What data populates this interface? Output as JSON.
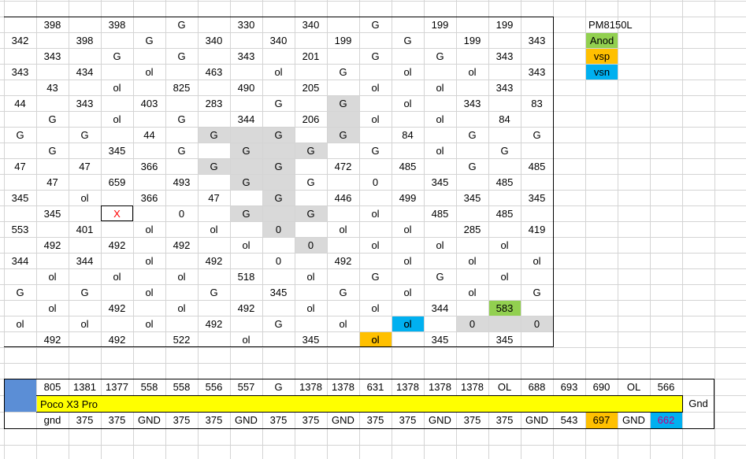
{
  "colors": {
    "gray": "#d9d9d9",
    "green": "#92d050",
    "orange": "#ffc000",
    "blue": "#00b0f0",
    "yellow": "#ffff00",
    "steel_blue": "#5b8ed6",
    "red_text": "#ff0000",
    "magenta_text": "#c00080",
    "grid_line": "#d4d4d4"
  },
  "legend": {
    "title": "PM8150L",
    "items": [
      {
        "label": "Anod",
        "color": "green"
      },
      {
        "label": "vsp",
        "color": "orange"
      },
      {
        "label": "vsn",
        "color": "blue"
      }
    ]
  },
  "top_table": [
    [
      "",
      "398",
      "",
      "398",
      "",
      "G",
      "",
      "330",
      "",
      "340",
      "",
      "G",
      "",
      "199",
      "",
      "199",
      ""
    ],
    [
      "342",
      "",
      "398",
      "",
      "G",
      "",
      "340",
      "",
      "340",
      "",
      "199",
      "",
      "G",
      "",
      "199",
      "",
      "343"
    ],
    [
      "",
      "343",
      "",
      "G",
      "",
      "G",
      "",
      "343",
      "",
      "201",
      "",
      "G",
      "",
      "G",
      "",
      "343",
      ""
    ],
    [
      "343",
      "",
      "434",
      "",
      "ol",
      "",
      "463",
      "",
      "ol",
      "",
      "G",
      "",
      "ol",
      "",
      "ol",
      "",
      "343"
    ],
    [
      "",
      "43",
      "",
      "ol",
      "",
      "825",
      "",
      "490",
      "",
      "205",
      "",
      "ol",
      "",
      "ol",
      "",
      "343",
      ""
    ],
    [
      "44",
      "",
      "343",
      "",
      "403",
      "",
      "283",
      "",
      "G",
      "",
      "G",
      "",
      "ol",
      "",
      "343",
      "",
      "83"
    ],
    [
      "",
      "G",
      "",
      "ol",
      "",
      "G",
      "",
      "344",
      "",
      "206",
      "",
      "ol",
      "",
      "ol",
      "",
      "84",
      ""
    ],
    [
      "G",
      "",
      "G",
      "",
      "44",
      "",
      "G",
      "",
      "G",
      "",
      "G",
      "",
      "84",
      "",
      "G",
      "",
      "G"
    ],
    [
      "",
      "G",
      "",
      "345",
      "",
      "G",
      "",
      "G",
      "",
      "G",
      "",
      "G",
      "",
      "ol",
      "",
      "G",
      ""
    ],
    [
      "47",
      "",
      "47",
      "",
      "366",
      "",
      "G",
      "",
      "G",
      "",
      "472",
      "",
      "485",
      "",
      "G",
      "",
      "485"
    ],
    [
      "",
      "47",
      "",
      "659",
      "",
      "493",
      "",
      "G",
      "",
      "G",
      "",
      "0",
      "",
      "345",
      "",
      "485",
      ""
    ],
    [
      "345",
      "",
      "ol",
      "",
      "366",
      "",
      "47",
      "",
      "G",
      "",
      "446",
      "",
      "499",
      "",
      "345",
      "",
      "345"
    ],
    [
      "",
      "345",
      "",
      "X",
      "",
      "0",
      "",
      "G",
      "",
      "G",
      "",
      "ol",
      "",
      "485",
      "",
      "485",
      ""
    ],
    [
      "553",
      "",
      "401",
      "",
      "ol",
      "",
      "ol",
      "",
      "0",
      "",
      "ol",
      "",
      "ol",
      "",
      "285",
      "",
      "419"
    ],
    [
      "",
      "492",
      "",
      "492",
      "",
      "492",
      "",
      "ol",
      "",
      "0",
      "",
      "ol",
      "",
      "ol",
      "",
      "ol",
      ""
    ],
    [
      "344",
      "",
      "344",
      "",
      "ol",
      "",
      "492",
      "",
      "0",
      "",
      "492",
      "",
      "ol",
      "",
      "ol",
      "",
      "ol"
    ],
    [
      "",
      "ol",
      "",
      "ol",
      "",
      "ol",
      "",
      "518",
      "",
      "ol",
      "",
      "G",
      "",
      "G",
      "",
      "ol",
      ""
    ],
    [
      "G",
      "",
      "G",
      "",
      "ol",
      "",
      "G",
      "",
      "345",
      "",
      "G",
      "",
      "ol",
      "",
      "ol",
      "",
      "G"
    ],
    [
      "",
      "ol",
      "",
      "492",
      "",
      "ol",
      "",
      "492",
      "",
      "ol",
      "",
      "ol",
      "",
      "344",
      "",
      "583",
      ""
    ],
    [
      "ol",
      "",
      "ol",
      "",
      "ol",
      "",
      "492",
      "",
      "G",
      "",
      "ol",
      "",
      "ol",
      "",
      "0",
      "",
      "0"
    ],
    [
      "",
      "492",
      "",
      "492",
      "",
      "522",
      "",
      "ol",
      "",
      "345",
      "",
      "ol",
      "",
      "345",
      "",
      "345",
      ""
    ]
  ],
  "highlights": [
    {
      "r": 5,
      "c": 10,
      "color": "gray"
    },
    {
      "r": 6,
      "c": 10,
      "color": "gray"
    },
    {
      "r": 7,
      "c": 6,
      "color": "gray"
    },
    {
      "r": 7,
      "c": 7,
      "color": "gray"
    },
    {
      "r": 7,
      "c": 8,
      "color": "gray"
    },
    {
      "r": 7,
      "c": 10,
      "color": "gray"
    },
    {
      "r": 8,
      "c": 7,
      "color": "gray"
    },
    {
      "r": 8,
      "c": 8,
      "color": "gray"
    },
    {
      "r": 8,
      "c": 9,
      "color": "gray"
    },
    {
      "r": 9,
      "c": 6,
      "color": "gray"
    },
    {
      "r": 9,
      "c": 7,
      "color": "gray"
    },
    {
      "r": 9,
      "c": 8,
      "color": "gray"
    },
    {
      "r": 10,
      "c": 7,
      "color": "gray"
    },
    {
      "r": 10,
      "c": 8,
      "color": "gray"
    },
    {
      "r": 11,
      "c": 8,
      "color": "gray"
    },
    {
      "r": 12,
      "c": 7,
      "color": "gray"
    },
    {
      "r": 12,
      "c": 8,
      "color": "gray"
    },
    {
      "r": 12,
      "c": 9,
      "color": "gray"
    },
    {
      "r": 13,
      "c": 8,
      "color": "gray"
    },
    {
      "r": 14,
      "c": 9,
      "color": "gray"
    },
    {
      "r": 18,
      "c": 15,
      "color": "green"
    },
    {
      "r": 19,
      "c": 12,
      "color": "blue"
    },
    {
      "r": 19,
      "c": 14,
      "color": "gray"
    },
    {
      "r": 19,
      "c": 15,
      "color": "gray"
    },
    {
      "r": 19,
      "c": 16,
      "color": "gray"
    },
    {
      "r": 20,
      "c": 11,
      "color": "orange"
    }
  ],
  "marked_cell": {
    "r": 12,
    "c": 3
  },
  "extra_cells": [
    {
      "r": 19,
      "c": 12,
      "text": "ol"
    },
    {
      "r": 20,
      "c": 11,
      "text": "ol"
    }
  ],
  "bottom_table": {
    "row1": [
      "805",
      "1381",
      "1377",
      "558",
      "558",
      "556",
      "557",
      "G",
      "1378",
      "1378",
      "631",
      "1378",
      "1378",
      "1378",
      "OL",
      "688",
      "693",
      "690",
      "OL",
      "566"
    ],
    "banner": "Poco X3 Pro",
    "side_label": "Gnd",
    "row3": [
      "gnd",
      "375",
      "375",
      "GND",
      "375",
      "375",
      "GND",
      "375",
      "375",
      "GND",
      "375",
      "375",
      "GND",
      "375",
      "375",
      "GND",
      "543",
      "697",
      "GND",
      "662"
    ],
    "row3_colors": [
      {
        "c": 17,
        "color": "orange"
      },
      {
        "c": 19,
        "color": "blue"
      }
    ]
  }
}
